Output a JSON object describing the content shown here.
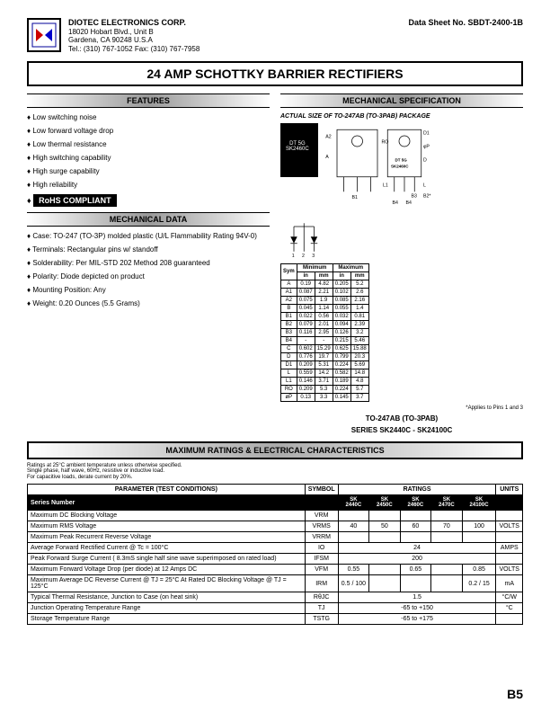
{
  "header": {
    "company_name": "DIOTEC ELECTRONICS CORP.",
    "addr1": "18020 Hobart Blvd., Unit B",
    "addr2": "Gardena, CA 90248 U.S.A",
    "contact": "Tel.: (310) 767-1052  Fax: (310) 767-7958",
    "datasheet": "Data Sheet No. SBDT-2400-1B"
  },
  "title": "24 AMP SCHOTTKY BARRIER RECTIFIERS",
  "sections": {
    "features": "FEATURES",
    "mech_spec": "MECHANICAL SPECIFICATION",
    "mech_data": "MECHANICAL DATA",
    "max_ratings": "MAXIMUM RATINGS & ELECTRICAL CHARACTERISTICS"
  },
  "features": [
    "Low switching noise",
    "Low forward voltage drop",
    "Low thermal resistance",
    "High switching capability",
    "High surge capability",
    "High reliability"
  ],
  "rohs": "RoHS COMPLIANT",
  "mech_data": [
    "Case: TO-247 (TO-3P) molded plastic (U/L Flammability Rating 94V-0)",
    "Terminals: Rectangular pins w/ standoff",
    "Solderability: Per MIL-STD 202 Method 208 guaranteed",
    "Polarity: Diode depicted on product",
    "Mounting Position: Any",
    "Weight: 0.20 Ounces (5.5 Grams)"
  ],
  "pkg": {
    "label": "ACTUAL SIZE OF TO-247AB (TO-3PAB) PACKAGE",
    "marking1": "DT 5G",
    "marking2": "SK2460C",
    "applies": "*Applies to Pins 1 and 3",
    "subtitle": "TO-247AB (TO-3PAB)",
    "series": "SERIES SK2440C - SK24100C"
  },
  "dim_table": {
    "headers": [
      "Sym",
      "Minimum",
      "Maximum"
    ],
    "subheaders": [
      "",
      "in",
      "mm",
      "in",
      "mm"
    ],
    "rows": [
      [
        "A",
        "0.19",
        "4.82",
        "0.205",
        "5.2"
      ],
      [
        "A1",
        "0.087",
        "2.21",
        "0.102",
        "2.6"
      ],
      [
        "A2",
        "0.075",
        "1.9",
        "0.085",
        "2.16"
      ],
      [
        "B",
        "0.045",
        "1.14",
        "0.055",
        "1.4"
      ],
      [
        "B1",
        "0.022",
        "0.56",
        "0.032",
        "0.81"
      ],
      [
        "B2",
        "0.079",
        "2.01",
        "0.094",
        "2.39"
      ],
      [
        "B3",
        "0.116",
        "2.95",
        "0.126",
        "3.2"
      ],
      [
        "B4",
        "-",
        "-",
        "0.215",
        "5.46"
      ],
      [
        "C",
        "0.602",
        "15.29",
        "0.625",
        "15.88"
      ],
      [
        "D",
        "0.776",
        "19.7",
        "0.799",
        "20.3"
      ],
      [
        "D1",
        "0.209",
        "5.31",
        "0.224",
        "5.69"
      ],
      [
        "L",
        "0.559",
        "14.2",
        "0.582",
        "14.8"
      ],
      [
        "L1",
        "0.146",
        "3.71",
        "0.189",
        "4.8"
      ],
      [
        "RO",
        "0.209",
        "5.3",
        "0.224",
        "5.7"
      ],
      [
        "øP",
        "0.13",
        "3.3",
        "0.145",
        "3.7"
      ]
    ]
  },
  "ratings_note": {
    "line1": "Ratings at 25°C ambient temperature unless otherwise specified.",
    "line2": "Single phase, half wave, 60Hz, resistive or inductive load.",
    "line3": "For capacitive loads, derate current by 20%."
  },
  "ratings_table": {
    "headers": [
      "PARAMETER (TEST CONDITIONS)",
      "SYMBOL",
      "RATINGS",
      "UNITS"
    ],
    "series_label": "Series Number",
    "series": [
      "SK 2440C",
      "SK 2450C",
      "SK 2460C",
      "SK 2470C",
      "SK 24100C"
    ],
    "rows": [
      {
        "param": "Maximum DC Blocking Voltage",
        "sym": "VRM",
        "vals": [
          "",
          "",
          "",
          "",
          ""
        ],
        "unit": ""
      },
      {
        "param": "Maximum RMS Voltage",
        "sym": "VRMS",
        "vals": [
          "40",
          "50",
          "60",
          "70",
          "100"
        ],
        "unit": "VOLTS"
      },
      {
        "param": "Maximum Peak Recurrent Reverse Voltage",
        "sym": "VRRM",
        "vals": [
          "",
          "",
          "",
          "",
          ""
        ],
        "unit": ""
      },
      {
        "param": "Average Forward Rectified Current @ Tc = 100°C",
        "sym": "IO",
        "vals": [
          "24"
        ],
        "unit": "AMPS",
        "span": 5
      },
      {
        "param": "Peak Forward Surge Current ( 8.3mS single half sine wave superimposed on rated load)",
        "sym": "IFSM",
        "vals": [
          "200"
        ],
        "unit": "",
        "span": 5
      },
      {
        "param": "Maximum Forward Voltage Drop (per diode) at 12 Amps DC",
        "sym": "VFM",
        "vals": [
          "0.55",
          "",
          "0.65",
          "",
          "0.85"
        ],
        "unit": "VOLTS"
      },
      {
        "param": "Maximum Average DC Reverse Current @ TJ = 25°C\nAt Rated DC Blocking Voltage @ TJ = 125°C",
        "sym": "IRM",
        "vals": [
          "0.5 / 100",
          "",
          "",
          "",
          "0.2 / 15"
        ],
        "unit": "mA"
      },
      {
        "param": "Typical Thermal Resistance, Junction to Case (on heat sink)",
        "sym": "RθJC",
        "vals": [
          "1.5"
        ],
        "unit": "°C/W",
        "span": 5
      },
      {
        "param": "Junction Operating Temperature Range",
        "sym": "TJ",
        "vals": [
          "-65 to +150"
        ],
        "unit": "°C",
        "span": 5
      },
      {
        "param": "Storage Temperature Range",
        "sym": "TSTG",
        "vals": [
          "-65 to +175"
        ],
        "unit": "",
        "span": 5
      }
    ]
  },
  "page_num": "B5"
}
